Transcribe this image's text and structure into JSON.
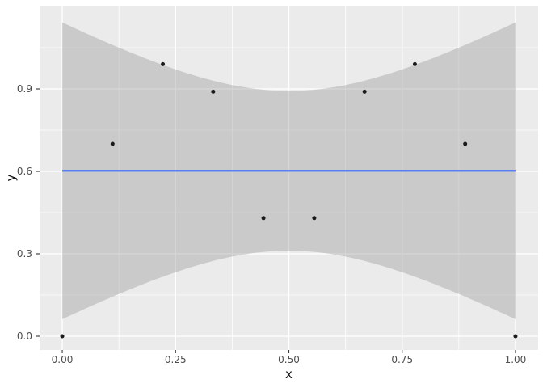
{
  "chart_data": {
    "type": "scatter",
    "title": "",
    "xlabel": "x",
    "ylabel": "y",
    "points": {
      "x": [
        0.0,
        0.111,
        0.222,
        0.333,
        0.444,
        0.556,
        0.667,
        0.778,
        0.889,
        1.0
      ],
      "y": [
        0.0,
        0.7,
        0.99,
        0.89,
        0.43,
        0.43,
        0.89,
        0.99,
        0.7,
        0.0
      ]
    },
    "smooth": {
      "method": "lm",
      "level": 0.95,
      "t_multiplier": 2.306,
      "line": {
        "intercept": 0.602,
        "slope": 0
      },
      "line_color": "#3366FF",
      "line_width": 2.2,
      "ribbon_fill": "#999999",
      "ribbon_opacity": 0.4
    },
    "x_axis": {
      "tick_labels": [
        "0.00",
        "0.25",
        "0.50",
        "0.75",
        "1.00"
      ],
      "tick_values": [
        0,
        0.25,
        0.5,
        0.75,
        1.0
      ],
      "minor_ticks": [
        0.125,
        0.375,
        0.625,
        0.875
      ],
      "range": [
        -0.05,
        1.05
      ]
    },
    "y_axis": {
      "tick_labels": [
        "0.0",
        "0.3",
        "0.6",
        "0.9"
      ],
      "tick_values": [
        0,
        0.3,
        0.6,
        0.9
      ],
      "minor_ticks": [
        0.15,
        0.45,
        0.75,
        1.05
      ],
      "range": [
        -0.05,
        1.2
      ]
    },
    "grid": true,
    "legend": "none",
    "theme": {
      "panel_bg": "#EBEBEB",
      "grid_color": "#FFFFFF",
      "outer_bg": "#FFFFFF",
      "point_color": "#1A1A1A",
      "point_radius": 2.5,
      "axis_text_color": "#4D4D4D",
      "axis_title_color": "#111111",
      "tick_color": "#333333"
    }
  }
}
